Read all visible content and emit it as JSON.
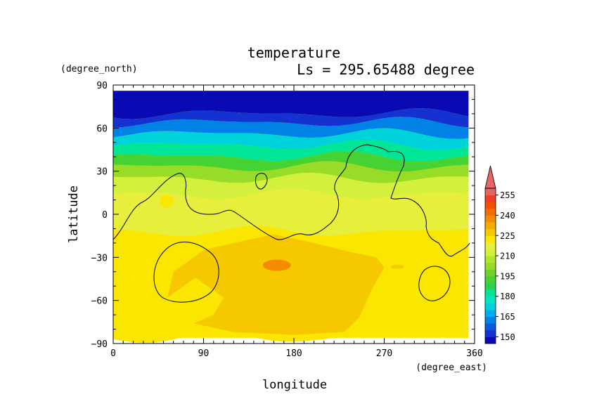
{
  "chart_data": {
    "type": "heatmap",
    "title": "temperature",
    "subtitle": "Ls = 295.65488 degree",
    "xlabel": "longitude",
    "ylabel": "latitude",
    "x_units": "(degree_east)",
    "y_units": "(degree_north)",
    "xlim": [
      0,
      360
    ],
    "ylim": [
      -90,
      90
    ],
    "x_ticks": [
      "0",
      "90",
      "180",
      "270",
      "360"
    ],
    "y_ticks": [
      "90",
      "60",
      "30",
      "0",
      "−30",
      "−60",
      "−90"
    ],
    "data_extent": {
      "lon": [
        0,
        354
      ],
      "lat": [
        -86,
        86
      ]
    },
    "colorbar": {
      "levels": [
        145,
        150,
        155,
        160,
        165,
        170,
        175,
        180,
        185,
        190,
        195,
        200,
        205,
        210,
        215,
        220,
        225,
        230,
        235,
        240,
        245,
        250,
        255,
        260
      ],
      "colors": [
        "#0a0ab4",
        "#1432d2",
        "#0a5adc",
        "#0082e6",
        "#00aaf0",
        "#00d2dc",
        "#00e6c3",
        "#00e696",
        "#28d250",
        "#46d232",
        "#6ed228",
        "#96dc28",
        "#b4e628",
        "#d2f03c",
        "#e6f03c",
        "#fae600",
        "#f5c800",
        "#f5aa00",
        "#f58c00",
        "#f56e00",
        "#f55000",
        "#f03c28",
        "#e66464"
      ],
      "tick_labels": [
        "150",
        "165",
        "180",
        "195",
        "210",
        "225",
        "240",
        "255"
      ]
    }
  }
}
